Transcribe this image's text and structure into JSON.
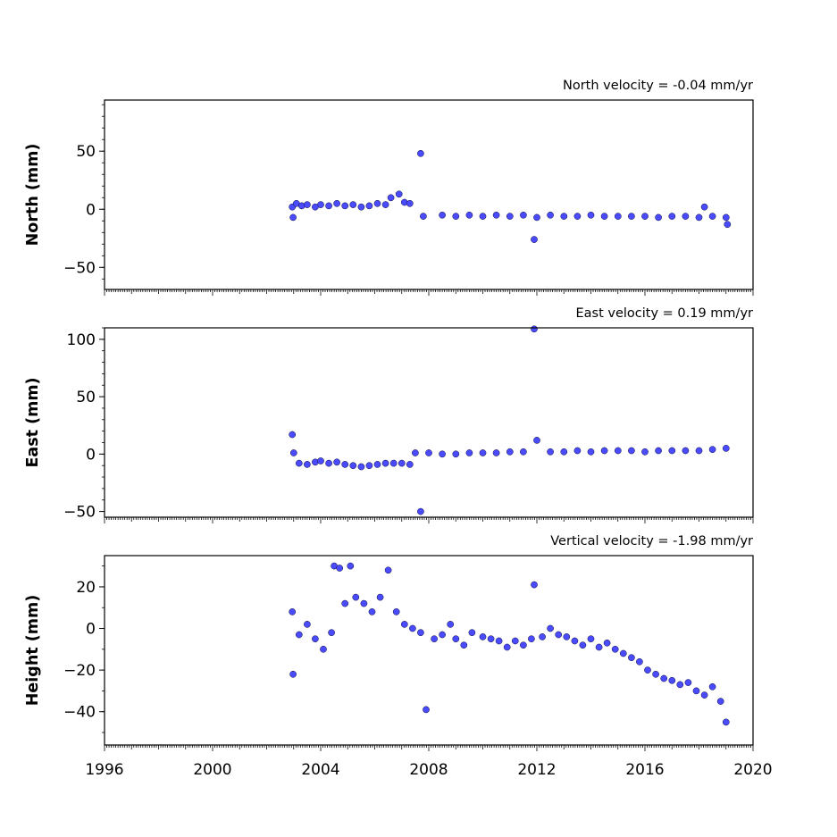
{
  "chart_data": [
    {
      "type": "scatter",
      "title": "North velocity = -0.04 mm/yr",
      "xlabel": "",
      "ylabel": "North (mm)",
      "xlim": [
        1996,
        2020
      ],
      "ylim": [
        -69,
        94
      ],
      "yticks": [
        50,
        0,
        -50
      ],
      "ytick_labels": [
        "50",
        "0",
        "−50"
      ],
      "grid": false,
      "marker_color": "#4a4aff",
      "marker_edge": "#0b0b3a",
      "series": [
        {
          "data": [
            [
              2002.95,
              2
            ],
            [
              2002.98,
              -7
            ],
            [
              2003.1,
              5
            ],
            [
              2003.3,
              3
            ],
            [
              2003.5,
              4
            ],
            [
              2003.8,
              2
            ],
            [
              2004.0,
              4
            ],
            [
              2004.3,
              3
            ],
            [
              2004.6,
              5
            ],
            [
              2004.9,
              3
            ],
            [
              2005.2,
              4
            ],
            [
              2005.5,
              2
            ],
            [
              2005.8,
              3
            ],
            [
              2006.1,
              5
            ],
            [
              2006.4,
              4
            ],
            [
              2006.6,
              10
            ],
            [
              2006.9,
              13
            ],
            [
              2007.1,
              6
            ],
            [
              2007.3,
              5
            ],
            [
              2007.7,
              48
            ],
            [
              2007.8,
              -6
            ],
            [
              2008.5,
              -5
            ],
            [
              2009.0,
              -6
            ],
            [
              2009.5,
              -5
            ],
            [
              2010.0,
              -6
            ],
            [
              2010.5,
              -5
            ],
            [
              2011.0,
              -6
            ],
            [
              2011.5,
              -5
            ],
            [
              2011.9,
              -26
            ],
            [
              2012.0,
              -7
            ],
            [
              2012.5,
              -5
            ],
            [
              2013.0,
              -6
            ],
            [
              2013.5,
              -6
            ],
            [
              2014.0,
              -5
            ],
            [
              2014.5,
              -6
            ],
            [
              2015.0,
              -6
            ],
            [
              2015.5,
              -6
            ],
            [
              2016.0,
              -6
            ],
            [
              2016.5,
              -7
            ],
            [
              2017.0,
              -6
            ],
            [
              2017.5,
              -6
            ],
            [
              2018.0,
              -7
            ],
            [
              2018.2,
              2
            ],
            [
              2018.5,
              -6
            ],
            [
              2019.0,
              -7
            ],
            [
              2019.05,
              -13
            ]
          ]
        }
      ]
    },
    {
      "type": "scatter",
      "title": "East velocity = 0.19 mm/yr",
      "xlabel": "",
      "ylabel": "East (mm)",
      "xlim": [
        1996,
        2020
      ],
      "ylim": [
        -55,
        110
      ],
      "yticks": [
        100,
        50,
        0,
        -50
      ],
      "ytick_labels": [
        "100",
        "50",
        "0",
        "−50"
      ],
      "grid": false,
      "marker_color": "#4a4aff",
      "marker_edge": "#0b0b3a",
      "series": [
        {
          "data": [
            [
              2002.95,
              17
            ],
            [
              2003.0,
              1
            ],
            [
              2003.2,
              -8
            ],
            [
              2003.5,
              -9
            ],
            [
              2003.8,
              -7
            ],
            [
              2004.0,
              -6
            ],
            [
              2004.3,
              -8
            ],
            [
              2004.6,
              -7
            ],
            [
              2004.9,
              -9
            ],
            [
              2005.2,
              -10
            ],
            [
              2005.5,
              -11
            ],
            [
              2005.8,
              -10
            ],
            [
              2006.1,
              -9
            ],
            [
              2006.4,
              -8
            ],
            [
              2006.7,
              -8
            ],
            [
              2007.0,
              -8
            ],
            [
              2007.3,
              -9
            ],
            [
              2007.5,
              1
            ],
            [
              2007.7,
              -50
            ],
            [
              2008.0,
              1
            ],
            [
              2008.5,
              0
            ],
            [
              2009.0,
              0
            ],
            [
              2009.5,
              1
            ],
            [
              2010.0,
              1
            ],
            [
              2010.5,
              1
            ],
            [
              2011.0,
              2
            ],
            [
              2011.5,
              2
            ],
            [
              2011.9,
              109
            ],
            [
              2012.0,
              12
            ],
            [
              2012.5,
              2
            ],
            [
              2013.0,
              2
            ],
            [
              2013.5,
              3
            ],
            [
              2014.0,
              2
            ],
            [
              2014.5,
              3
            ],
            [
              2015.0,
              3
            ],
            [
              2015.5,
              3
            ],
            [
              2016.0,
              2
            ],
            [
              2016.5,
              3
            ],
            [
              2017.0,
              3
            ],
            [
              2017.5,
              3
            ],
            [
              2018.0,
              3
            ],
            [
              2018.5,
              4
            ],
            [
              2019.0,
              5
            ]
          ]
        }
      ]
    },
    {
      "type": "scatter",
      "title": "Vertical velocity = -1.98 mm/yr",
      "xlabel": "",
      "ylabel": "Height (mm)",
      "xlim": [
        1996,
        2020
      ],
      "ylim": [
        -56,
        35
      ],
      "yticks": [
        20,
        0,
        -20,
        -40
      ],
      "ytick_labels": [
        "20",
        "0",
        "−20",
        "−40"
      ],
      "grid": false,
      "marker_color": "#4a4aff",
      "marker_edge": "#0b0b3a",
      "series": [
        {
          "data": [
            [
              2002.95,
              8
            ],
            [
              2002.98,
              -22
            ],
            [
              2003.2,
              -3
            ],
            [
              2003.5,
              2
            ],
            [
              2003.8,
              -5
            ],
            [
              2004.1,
              -10
            ],
            [
              2004.4,
              -2
            ],
            [
              2004.5,
              30
            ],
            [
              2004.7,
              29
            ],
            [
              2004.9,
              12
            ],
            [
              2005.1,
              30
            ],
            [
              2005.3,
              15
            ],
            [
              2005.6,
              12
            ],
            [
              2005.9,
              8
            ],
            [
              2006.2,
              15
            ],
            [
              2006.5,
              28
            ],
            [
              2006.8,
              8
            ],
            [
              2007.1,
              2
            ],
            [
              2007.4,
              0
            ],
            [
              2007.7,
              -2
            ],
            [
              2007.9,
              -39
            ],
            [
              2008.2,
              -5
            ],
            [
              2008.5,
              -3
            ],
            [
              2008.8,
              2
            ],
            [
              2009.0,
              -5
            ],
            [
              2009.3,
              -8
            ],
            [
              2009.6,
              -2
            ],
            [
              2010.0,
              -4
            ],
            [
              2010.3,
              -5
            ],
            [
              2010.6,
              -6
            ],
            [
              2010.9,
              -9
            ],
            [
              2011.2,
              -6
            ],
            [
              2011.5,
              -8
            ],
            [
              2011.8,
              -5
            ],
            [
              2011.9,
              21
            ],
            [
              2012.2,
              -4
            ],
            [
              2012.5,
              0
            ],
            [
              2012.8,
              -3
            ],
            [
              2013.1,
              -4
            ],
            [
              2013.4,
              -6
            ],
            [
              2013.7,
              -8
            ],
            [
              2014.0,
              -5
            ],
            [
              2014.3,
              -9
            ],
            [
              2014.6,
              -7
            ],
            [
              2014.9,
              -10
            ],
            [
              2015.2,
              -12
            ],
            [
              2015.5,
              -14
            ],
            [
              2015.8,
              -16
            ],
            [
              2016.1,
              -20
            ],
            [
              2016.4,
              -22
            ],
            [
              2016.7,
              -24
            ],
            [
              2017.0,
              -25
            ],
            [
              2017.3,
              -27
            ],
            [
              2017.6,
              -26
            ],
            [
              2017.9,
              -30
            ],
            [
              2018.2,
              -32
            ],
            [
              2018.5,
              -28
            ],
            [
              2018.8,
              -35
            ],
            [
              2019.0,
              -45
            ]
          ]
        }
      ]
    }
  ],
  "x_axis": {
    "ticks": [
      1996,
      2000,
      2004,
      2008,
      2012,
      2016,
      2020
    ],
    "tick_labels": [
      "1996",
      "2000",
      "2004",
      "2008",
      "2012",
      "2016",
      "2020"
    ]
  }
}
